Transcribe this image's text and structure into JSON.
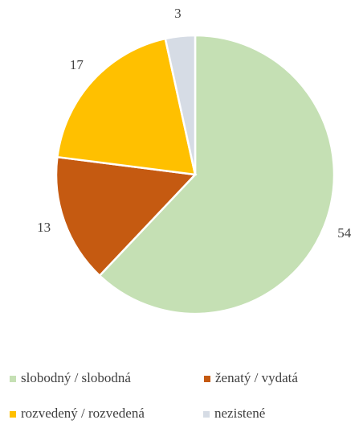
{
  "chart_data": {
    "type": "pie",
    "categories": [
      "slobodný / slobodná",
      "ženatý / vydatá",
      "rozvedený / rozvedená",
      "nezistené"
    ],
    "values": [
      54,
      13,
      17,
      3
    ],
    "colors": [
      "#c5e0b4",
      "#c55a11",
      "#ffc000",
      "#d6dce5"
    ],
    "legend": "bottom"
  }
}
